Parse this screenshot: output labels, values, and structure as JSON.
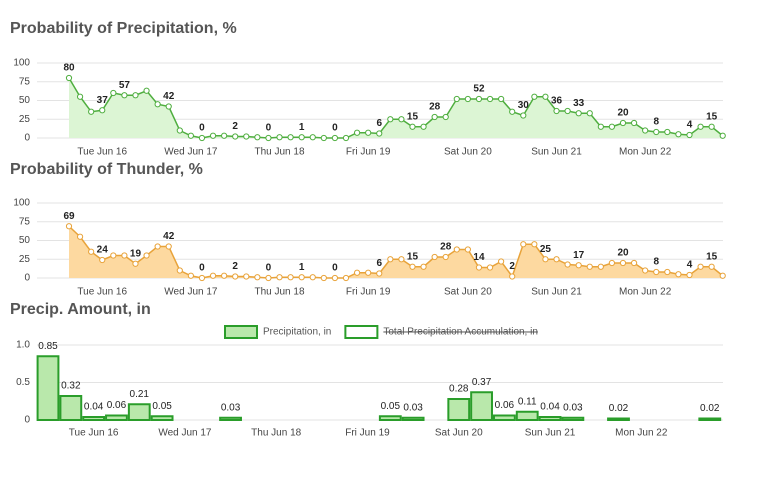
{
  "chart_data": [
    {
      "type": "line",
      "title": "Probability of Precipitation, %",
      "categories": [
        null,
        null,
        null,
        "Tue Jun 16",
        null,
        null,
        null,
        null,
        null,
        null,
        null,
        "Wed Jun 17",
        null,
        null,
        null,
        null,
        null,
        null,
        null,
        "Thu Jun 18",
        null,
        null,
        null,
        null,
        null,
        null,
        null,
        "Fri Jun 19",
        null,
        null,
        null,
        null,
        null,
        null,
        null,
        null,
        "Sat Jun 20",
        null,
        null,
        null,
        null,
        null,
        null,
        null,
        "Sun Jun 21",
        null,
        null,
        null,
        null,
        null,
        null,
        null,
        "Mon Jun 22",
        null,
        null,
        null,
        null,
        null,
        null,
        null
      ],
      "series": [
        {
          "name": null,
          "color": "#4fae3f",
          "fill": "#dcf5d4",
          "values": [
            80,
            55,
            35,
            37,
            60,
            57,
            57,
            63,
            45,
            42,
            10,
            3,
            0,
            3,
            3,
            2,
            2,
            1,
            0,
            1,
            1,
            1,
            1,
            0,
            0,
            0,
            7,
            7,
            6,
            25,
            25,
            15,
            15,
            28,
            28,
            52,
            52,
            52,
            52,
            52,
            35,
            30,
            55,
            55,
            36,
            36,
            33,
            33,
            15,
            15,
            20,
            20,
            10,
            8,
            8,
            5,
            4,
            15,
            15,
            3
          ],
          "value_labels": [
            "80",
            null,
            null,
            "37",
            null,
            "57",
            null,
            null,
            null,
            "42",
            null,
            null,
            "0",
            null,
            null,
            "2",
            null,
            null,
            "0",
            null,
            null,
            "1",
            null,
            null,
            "0",
            null,
            null,
            null,
            "6",
            null,
            null,
            "15",
            null,
            "28",
            null,
            null,
            null,
            "52",
            null,
            null,
            null,
            "30",
            null,
            null,
            "36",
            null,
            "33",
            null,
            null,
            null,
            "20",
            null,
            null,
            "8",
            null,
            null,
            "4",
            null,
            "15",
            null
          ]
        }
      ],
      "ylim": [
        0,
        100
      ],
      "yticks": [
        0,
        25,
        50,
        75,
        100
      ],
      "grid": true
    },
    {
      "type": "line",
      "title": "Probability of Thunder, %",
      "categories": [
        null,
        null,
        null,
        "Tue Jun 16",
        null,
        null,
        null,
        null,
        null,
        null,
        null,
        "Wed Jun 17",
        null,
        null,
        null,
        null,
        null,
        null,
        null,
        "Thu Jun 18",
        null,
        null,
        null,
        null,
        null,
        null,
        null,
        "Fri Jun 19",
        null,
        null,
        null,
        null,
        null,
        null,
        null,
        null,
        "Sat Jun 20",
        null,
        null,
        null,
        null,
        null,
        null,
        null,
        "Sun Jun 21",
        null,
        null,
        null,
        null,
        null,
        null,
        null,
        "Mon Jun 22",
        null,
        null,
        null,
        null,
        null,
        null,
        null
      ],
      "series": [
        {
          "name": null,
          "color": "#e8a33a",
          "fill": "#fdd9a0",
          "values": [
            69,
            55,
            35,
            24,
            30,
            30,
            19,
            30,
            42,
            42,
            10,
            3,
            0,
            3,
            3,
            2,
            2,
            1,
            0,
            1,
            1,
            1,
            1,
            0,
            0,
            0,
            7,
            7,
            6,
            25,
            25,
            15,
            15,
            28,
            28,
            38,
            38,
            14,
            14,
            22,
            2,
            45,
            45,
            25,
            25,
            18,
            17,
            15,
            15,
            20,
            20,
            20,
            10,
            8,
            8,
            5,
            4,
            15,
            15,
            3
          ],
          "value_labels": [
            "69",
            null,
            null,
            "24",
            null,
            null,
            "19",
            null,
            null,
            "42",
            null,
            null,
            "0",
            null,
            null,
            "2",
            null,
            null,
            "0",
            null,
            null,
            "1",
            null,
            null,
            "0",
            null,
            null,
            null,
            "6",
            null,
            null,
            "15",
            null,
            null,
            "28",
            null,
            null,
            "14",
            null,
            null,
            "2",
            null,
            null,
            "25",
            null,
            null,
            "17",
            null,
            null,
            null,
            "20",
            null,
            null,
            "8",
            null,
            null,
            "4",
            null,
            "15",
            null
          ]
        }
      ],
      "ylim": [
        0,
        100
      ],
      "yticks": [
        0,
        25,
        50,
        75,
        100
      ],
      "grid": true
    },
    {
      "type": "bar",
      "title": "Precip. Amount, in",
      "categories": [
        null,
        null,
        "Tue Jun 16",
        null,
        null,
        null,
        "Wed Jun 17",
        null,
        null,
        null,
        "Thu Jun 18",
        null,
        null,
        null,
        "Fri Jun 19",
        null,
        null,
        null,
        "Sat Jun 20",
        null,
        null,
        null,
        "Sun Jun 21",
        null,
        null,
        null,
        "Mon Jun 22",
        null,
        null,
        null
      ],
      "series": [
        {
          "name": "Precipitation, in",
          "color": "#2a9d2a",
          "fill": "#b9e8ab",
          "values": [
            0.85,
            0.32,
            0.04,
            0.06,
            0.21,
            0.05,
            0,
            0,
            0.03,
            0,
            0,
            0,
            0,
            0,
            0,
            0.05,
            0.03,
            0,
            0.28,
            0.37,
            0.06,
            0.11,
            0.04,
            0.03,
            0,
            0.02,
            0,
            0,
            0,
            0.02
          ],
          "value_labels": [
            "0.85",
            "0.32",
            "0.04",
            "0.06",
            "0.21",
            "0.05",
            null,
            null,
            "0.03",
            null,
            null,
            null,
            null,
            null,
            null,
            "0.05",
            "0.03",
            null,
            "0.28",
            "0.37",
            "0.06",
            "0.11",
            "0.04",
            "0.03",
            null,
            "0.02",
            null,
            null,
            null,
            "0.02"
          ]
        },
        {
          "name": "Total Precipitation Accumulation, in",
          "color": "#2a9d2a",
          "fill": "#ffffff",
          "hidden": true
        }
      ],
      "ylim": [
        0,
        1
      ],
      "yticks": [
        0,
        0.5,
        {
          "value": 1,
          "label": "1.0"
        }
      ],
      "grid": true,
      "legend": "top"
    }
  ]
}
